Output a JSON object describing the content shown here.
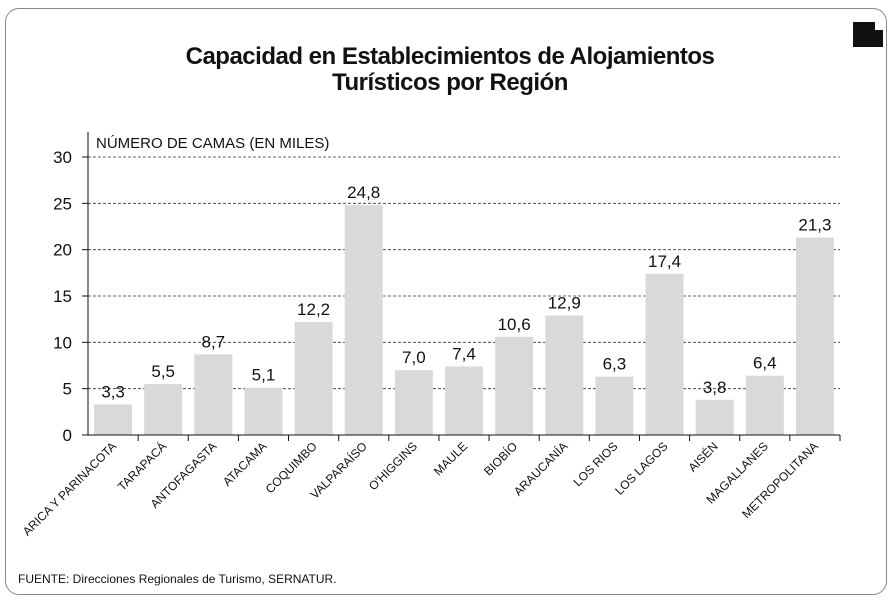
{
  "chart_data": {
    "type": "bar",
    "title": "Capacidad en Establecimientos de Alojamientos Turísticos por Región",
    "y_axis_label": "NÚMERO DE CAMAS (EN MILES)",
    "source": "FUENTE: Direcciones Regionales de Turismo, SERNATUR.",
    "categories": [
      "ARICA Y PARINACOTA",
      "TARAPACÁ",
      "ANTOFAGASTA",
      "ATACAMA",
      "COQUIMBO",
      "VALPARAÍSO",
      "O'HIGGINS",
      "MAULE",
      "BIOBÍO",
      "ARAUCANÍA",
      "LOS RIOS",
      "LOS LAGOS",
      "AISÉN",
      "MAGALLANES",
      "METROPOLITANA"
    ],
    "values": [
      3.3,
      5.5,
      8.7,
      5.1,
      12.2,
      24.8,
      7.0,
      7.4,
      10.6,
      12.9,
      6.3,
      17.4,
      3.8,
      6.4,
      21.3
    ],
    "value_labels": [
      "3,3",
      "5,5",
      "8,7",
      "5,1",
      "12,2",
      "24,8",
      "7,0",
      "7,4",
      "10,6",
      "12,9",
      "6,3",
      "17,4",
      "3,8",
      "6,4",
      "21,3"
    ],
    "color": "#d9d9d9",
    "ylim": [
      0,
      30
    ],
    "yticks": [
      0,
      5,
      10,
      15,
      20,
      25,
      30
    ],
    "grid": true
  }
}
